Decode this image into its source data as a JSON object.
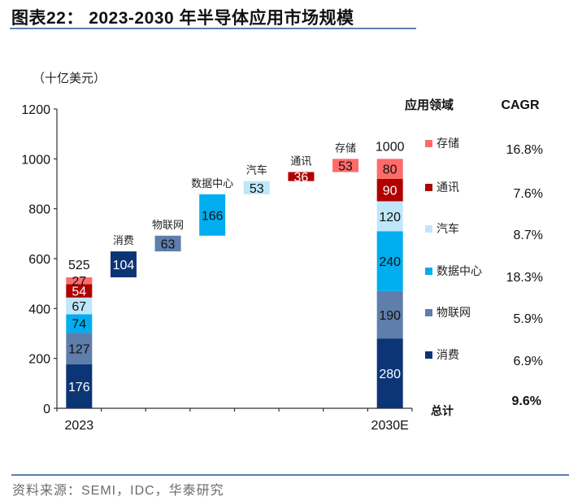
{
  "header": {
    "title": "图表22：  2023-2030 年半导体应用市场规模"
  },
  "footer": {
    "source": "资料来源：SEMI，IDC，华泰研究"
  },
  "chart_data": {
    "type": "bar",
    "subtype": "waterfall-stacked",
    "title": "2023-2030 年半导体应用市场规模",
    "unit_label": "（十亿美元）",
    "ylim": [
      0,
      1200
    ],
    "yticks": [
      0,
      200,
      400,
      600,
      800,
      1000,
      1200
    ],
    "grid": false,
    "x_labels": [
      "2023",
      "2030E"
    ],
    "colors": {
      "消费": "#0c3576",
      "物联网": "#5f7eaa",
      "数据中心": "#00aeef",
      "汽车": "#bfe7fb",
      "通讯": "#b00000",
      "存储": "#ff6b6b"
    },
    "segments_order": [
      "消费",
      "物联网",
      "数据中心",
      "汽车",
      "通讯",
      "存储"
    ],
    "bar_2023": {
      "label": "2023",
      "total": 525,
      "values": [
        176,
        127,
        74,
        67,
        54,
        27
      ]
    },
    "bar_2030": {
      "label": "2030E",
      "total": 1000,
      "values": [
        280,
        190,
        240,
        120,
        90,
        80
      ]
    },
    "increments": [
      {
        "name": "消费",
        "value": 104
      },
      {
        "name": "物联网",
        "value": 63
      },
      {
        "name": "数据中心",
        "value": 166
      },
      {
        "name": "汽车",
        "value": 53
      },
      {
        "name": "通讯",
        "value": 36
      },
      {
        "name": "存储",
        "value": 53
      }
    ],
    "legend": {
      "header_label": "应用领域",
      "header_cagr": "CAGR",
      "items": [
        {
          "name": "存储",
          "cagr": "16.8%"
        },
        {
          "name": "通讯",
          "cagr": "7.6%"
        },
        {
          "name": "汽车",
          "cagr": "8.7%"
        },
        {
          "name": "数据中心",
          "cagr": "18.3%"
        },
        {
          "name": "物联网",
          "cagr": "5.9%"
        },
        {
          "name": "消费",
          "cagr": "6.9%"
        }
      ],
      "total_label": "总计",
      "total_cagr": "9.6%"
    }
  }
}
